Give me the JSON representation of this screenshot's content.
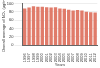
{
  "chart_data": {
    "type": "bar",
    "categories": [
      "1996",
      "1997",
      "1998",
      "1999",
      "2000",
      "2001",
      "2002",
      "2003",
      "2004",
      "2005",
      "2006",
      "2007",
      "2008",
      "2009",
      "2010",
      "2011",
      "2012"
    ],
    "values": [
      88,
      90,
      93,
      92,
      92,
      91,
      90,
      91,
      88,
      87,
      85,
      83,
      84,
      83,
      80,
      79,
      78
    ],
    "color": "#e07b6a",
    "x_label": "Years",
    "y_label": "Overall average of NO₂ (µg/m³)",
    "ylim": [
      0,
      100
    ],
    "yticks": [
      0,
      20,
      40,
      60,
      80,
      100
    ],
    "grid": true
  }
}
